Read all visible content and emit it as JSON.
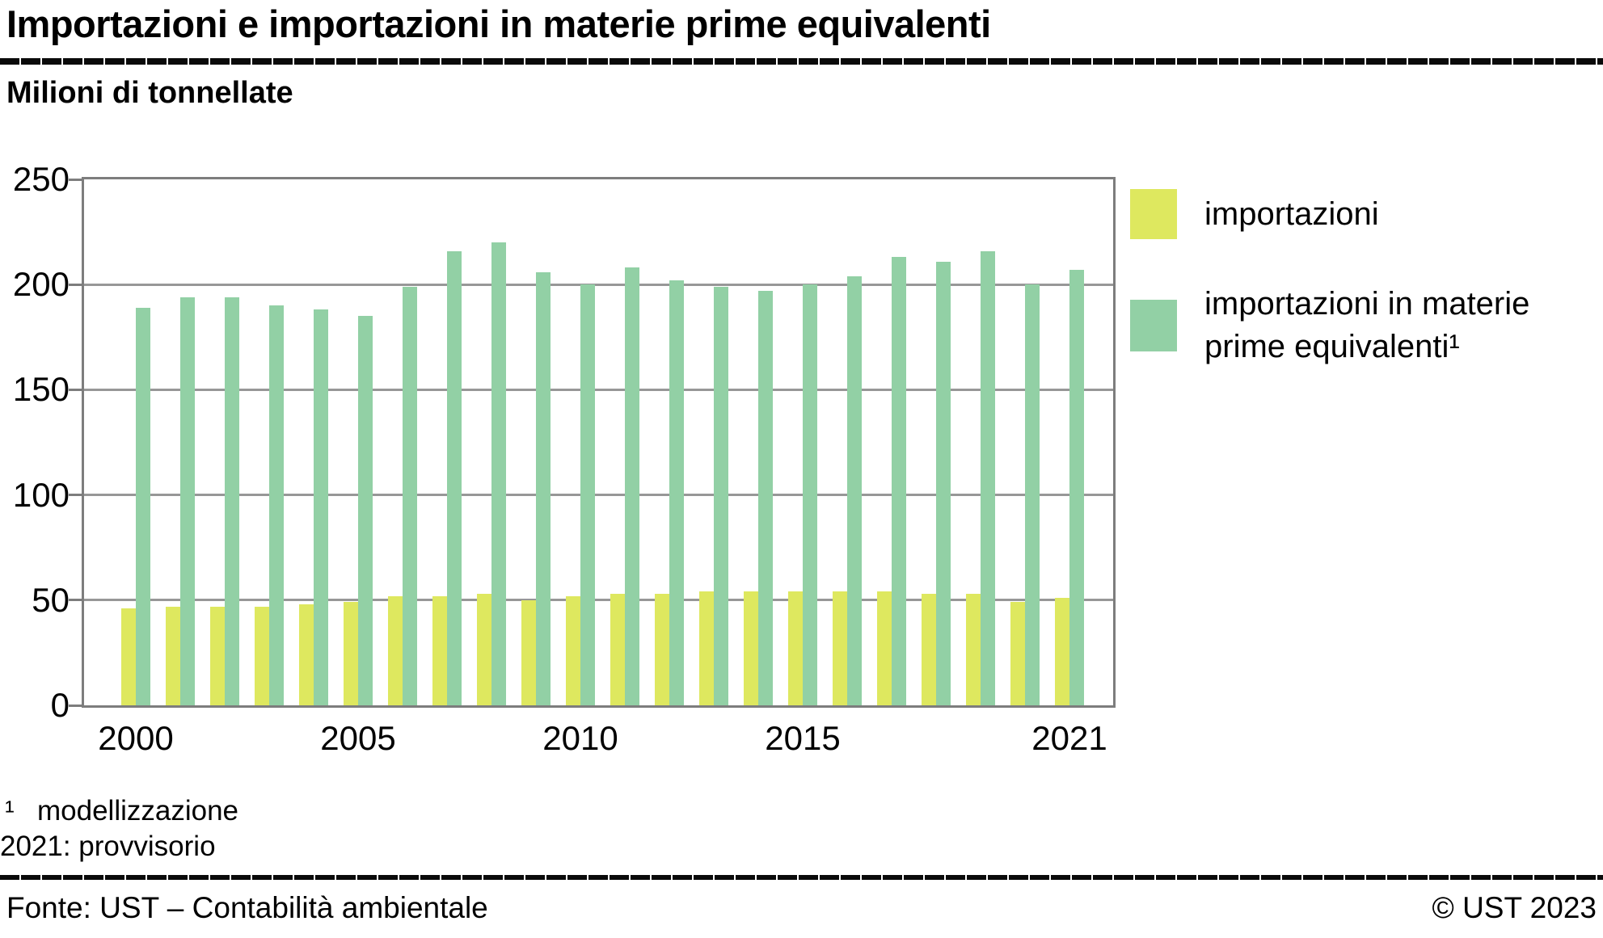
{
  "title": "Importazioni e importazioni in materie prime equivalenti",
  "subtitle": "Milioni di tonnellate",
  "chart_data": {
    "type": "bar",
    "categories": [
      2000,
      2001,
      2002,
      2003,
      2004,
      2005,
      2006,
      2007,
      2008,
      2009,
      2010,
      2011,
      2012,
      2013,
      2014,
      2015,
      2016,
      2017,
      2018,
      2019,
      2020,
      2021
    ],
    "series": [
      {
        "id": "importazioni",
        "name": "importazioni",
        "color": "#dee85f",
        "values": [
          46,
          47,
          47,
          47,
          48,
          49,
          52,
          52,
          53,
          50,
          52,
          53,
          53,
          54,
          54,
          54,
          54,
          54,
          53,
          53,
          49,
          51
        ]
      },
      {
        "id": "importazioni-rme",
        "name": "importazioni in materie prime equivalenti¹",
        "color": "#92d0a5",
        "values": [
          189,
          194,
          194,
          190,
          188,
          185,
          199,
          216,
          220,
          206,
          200,
          208,
          202,
          199,
          197,
          200,
          204,
          213,
          211,
          216,
          200,
          207
        ]
      }
    ],
    "title": "Importazioni e importazioni in materie prime equivalenti",
    "xlabel": "",
    "ylabel": "Milioni di tonnellate",
    "ylim": [
      0,
      250
    ],
    "yticks": [
      0,
      50,
      100,
      150,
      200,
      250
    ],
    "xtick_labels": [
      "2000",
      "2005",
      "2010",
      "2015",
      "2021"
    ],
    "grid": true,
    "legend_position": "right"
  },
  "legend": {
    "items": [
      {
        "label": "importazioni",
        "color": "#dee85f"
      },
      {
        "label": "importazioni in materie prime equivalenti¹",
        "color": "#92d0a5"
      }
    ]
  },
  "footnotes": {
    "line1_marker": "¹",
    "line1_text": "modellizzazione",
    "line2": "2021: provvisorio"
  },
  "source": "Fonte: UST – Contabilità ambientale",
  "copyright": "© UST 2023",
  "colors": {
    "bar_yellow": "#dee85f",
    "bar_green": "#92d0a5",
    "gridline": "#979797",
    "frame": "#7d7d7d"
  }
}
